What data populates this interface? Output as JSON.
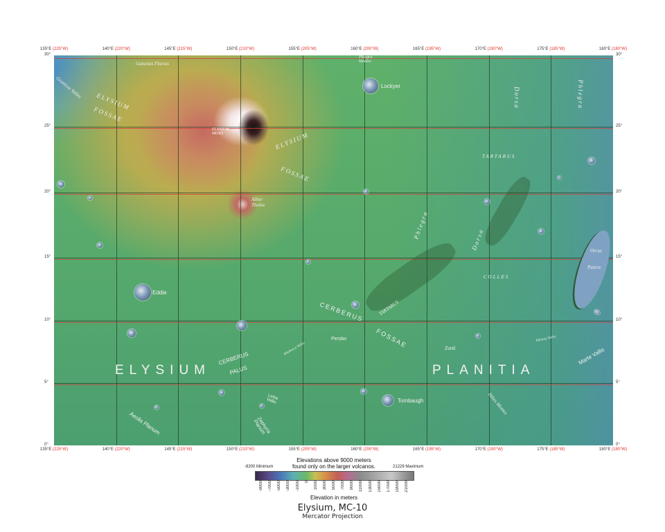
{
  "axes": {
    "top_lon": [
      {
        "e": "135°E",
        "w": "(225°W)"
      },
      {
        "e": "140°E",
        "w": "(220°W)"
      },
      {
        "e": "145°E",
        "w": "(215°W)"
      },
      {
        "e": "150°E",
        "w": "(210°W)"
      },
      {
        "e": "155°E",
        "w": "(205°W)"
      },
      {
        "e": "160°E",
        "w": "(200°W)"
      },
      {
        "e": "165°E",
        "w": "(195°W)"
      },
      {
        "e": "170°E",
        "w": "(190°W)"
      },
      {
        "e": "175°E",
        "w": "(185°W)"
      },
      {
        "e": "180°E",
        "w": "(180°W)"
      }
    ],
    "lat": [
      "30°",
      "25°",
      "20°",
      "15°",
      "10°",
      "5°",
      "0°"
    ]
  },
  "features": [
    "Galaxias Fluctus",
    "Granicus Valles",
    "ELYSIUM",
    "FOSSAE",
    "ELYSIUM MONS",
    "ELYSIUM",
    "FOSSAE",
    "Albor Tholus",
    "Lockyer",
    "Phlegra Montes",
    "Dorsa",
    "Phlegra",
    "TARTARUS",
    "Phlegra",
    "Dorsa",
    "COLLES",
    "Orcus",
    "Patera",
    "Eddie",
    "CERBERUS",
    "FOSSAE",
    "TARTARUS",
    "Persbo",
    "Athabasca Valles",
    "Zunil",
    "ELYSIUM",
    "PLANITIA",
    "CERBERUS",
    "PALUS",
    "Lethe Vallis",
    "Zephyria Planum",
    "Aeolis Planum",
    "Tombaugh",
    "Hibes Montes",
    "Marte Vallis",
    "Rahway Valles"
  ],
  "legend": {
    "min_label": "-8200 Minimum",
    "max_label": "21229 Maximum",
    "note_line1": "Elevations above 9000 meters",
    "note_line2": "found only on the larger volcanos.",
    "ticks": [
      "-9000",
      "-7000",
      "-5000",
      "-3000",
      "-1000",
      "0",
      "1000",
      "3000",
      "5000",
      "7000",
      "9000",
      "11000",
      "13000",
      "15000",
      "17000",
      "19000",
      "21000"
    ],
    "axis_label": "Elevation in meters"
  },
  "title": "Elysium, MC-10",
  "subtitle": "Mercator Projection",
  "colors": {
    "grid": "#1d3a22",
    "secondary_grid": "#d04040",
    "west_longitude": "#e0302a",
    "plains": "#57aa6c",
    "volcano_summit": "#c66a62"
  }
}
